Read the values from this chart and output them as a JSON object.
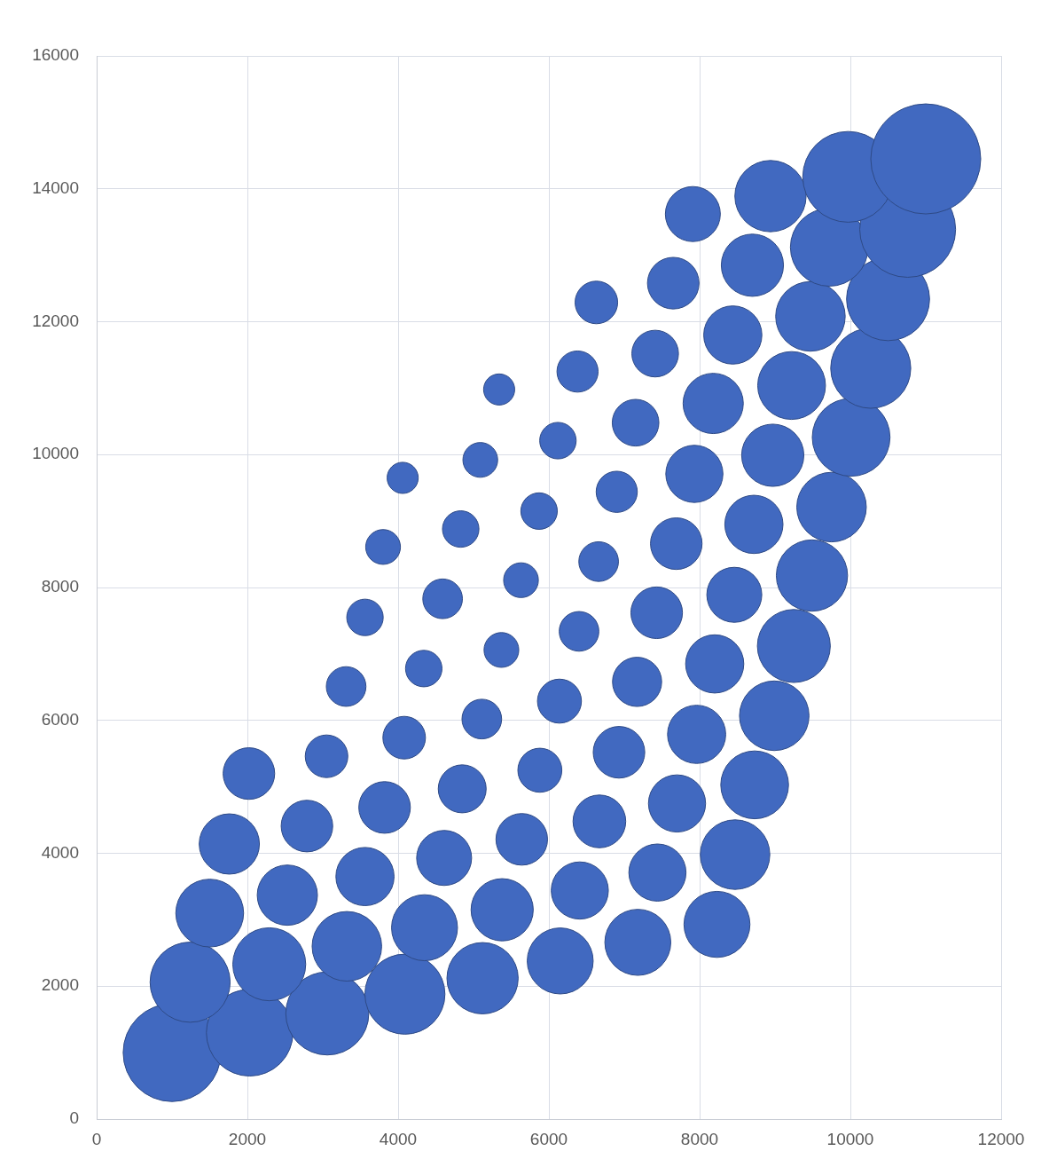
{
  "chart_data": {
    "type": "bubble",
    "color": "#4169c0",
    "x": [
      1000,
      2030,
      3060,
      4090,
      5120,
      6150,
      7180,
      8230,
      1240,
      2290,
      3320,
      4350,
      5380,
      6410,
      7440,
      8470,
      1500,
      2530,
      3560,
      4610,
      5640,
      6670,
      7700,
      8730,
      1760,
      2790,
      3820,
      4850,
      5880,
      6930,
      7960,
      8990,
      2020,
      3050,
      4080,
      5110,
      6140,
      7170,
      8200,
      9250,
      3310,
      4340,
      5370,
      6400,
      7430,
      8460,
      9490,
      3560,
      4590,
      5630,
      6660,
      7690,
      8720,
      9750,
      3800,
      4830,
      5870,
      6900,
      7930,
      8970,
      10010,
      4060,
      5090,
      6120,
      7150,
      8180,
      9220,
      10270,
      5340,
      6380,
      7410,
      8440,
      9470,
      10500,
      6630,
      7650,
      8700,
      9720,
      10760,
      7910,
      8940,
      9970,
      11000
    ],
    "values": [
      1000,
      1300,
      1590,
      1880,
      2120,
      2380,
      2660,
      2930,
      2060,
      2330,
      2600,
      2880,
      3150,
      3440,
      3710,
      3980,
      3100,
      3370,
      3650,
      3930,
      4210,
      4480,
      4750,
      5030,
      4140,
      4410,
      4690,
      4970,
      5250,
      5520,
      5790,
      6070,
      5200,
      5460,
      5740,
      6020,
      6290,
      6580,
      6850,
      7120,
      6510,
      6780,
      7060,
      7340,
      7620,
      7890,
      8180,
      7550,
      7830,
      8110,
      8390,
      8660,
      8950,
      9210,
      8610,
      8880,
      9150,
      9440,
      9710,
      9990,
      10260,
      9650,
      9920,
      10210,
      10480,
      10770,
      11040,
      11300,
      10980,
      11250,
      11520,
      11800,
      12080,
      12340,
      12290,
      12580,
      12850,
      13120,
      13390,
      13620,
      13890,
      14180,
      14450
    ],
    "sizes": [
      0.79,
      0.62,
      0.57,
      0.53,
      0.42,
      0.36,
      0.36,
      0.36,
      0.53,
      0.44,
      0.4,
      0.36,
      0.32,
      0.27,
      0.27,
      0.4,
      0.38,
      0.3,
      0.28,
      0.25,
      0.22,
      0.23,
      0.27,
      0.38,
      0.3,
      0.22,
      0.22,
      0.19,
      0.16,
      0.22,
      0.28,
      0.4,
      0.22,
      0.15,
      0.15,
      0.13,
      0.16,
      0.2,
      0.28,
      0.44,
      0.13,
      0.11,
      0.1,
      0.13,
      0.22,
      0.25,
      0.42,
      0.11,
      0.13,
      0.1,
      0.13,
      0.22,
      0.28,
      0.4,
      0.1,
      0.11,
      0.11,
      0.14,
      0.27,
      0.32,
      0.5,
      0.08,
      0.1,
      0.11,
      0.18,
      0.3,
      0.38,
      0.53,
      0.08,
      0.14,
      0.18,
      0.28,
      0.4,
      0.57,
      0.15,
      0.22,
      0.32,
      0.5,
      0.76,
      0.25,
      0.42,
      0.68,
      1
    ],
    "xlim": [
      0,
      12000
    ],
    "xticks": [
      0,
      2000,
      4000,
      6000,
      8000,
      10000,
      12000
    ],
    "ylim": [
      0,
      16000
    ],
    "yticks": [
      0,
      2000,
      4000,
      6000,
      8000,
      10000,
      12000,
      14000,
      16000
    ],
    "grid": true
  }
}
